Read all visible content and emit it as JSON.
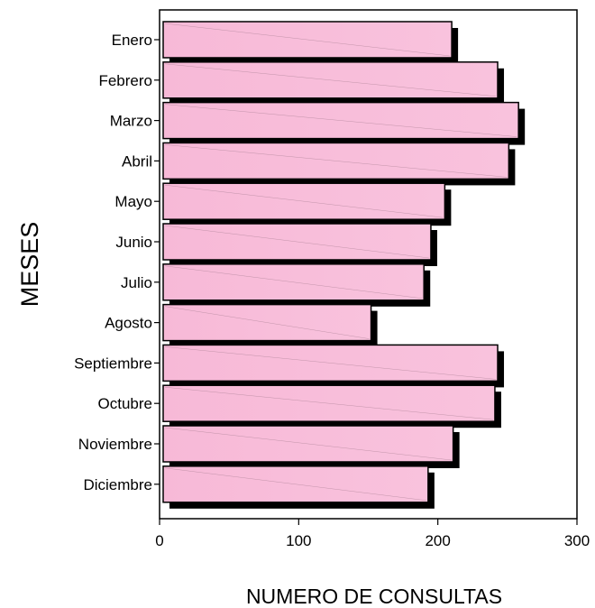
{
  "chart_data": {
    "type": "bar",
    "orientation": "horizontal",
    "categories": [
      "Enero",
      "Febrero",
      "Marzo",
      "Abril",
      "Mayo",
      "Junio",
      "Julio",
      "Agosto",
      "Septiembre",
      "Octubre",
      "Noviembre",
      "Diciembre"
    ],
    "values": [
      210,
      243,
      258,
      251,
      205,
      195,
      190,
      152,
      243,
      241,
      211,
      193
    ],
    "xlabel": "NUMERO DE CONSULTAS",
    "ylabel": "MESES",
    "xlim": [
      0,
      300
    ],
    "xticks": [
      0,
      100,
      200,
      300
    ],
    "grid": false,
    "colors": {
      "bar_fill": "#f8bbd9",
      "bar_edge": "#000000",
      "shadow": "#000000"
    }
  }
}
